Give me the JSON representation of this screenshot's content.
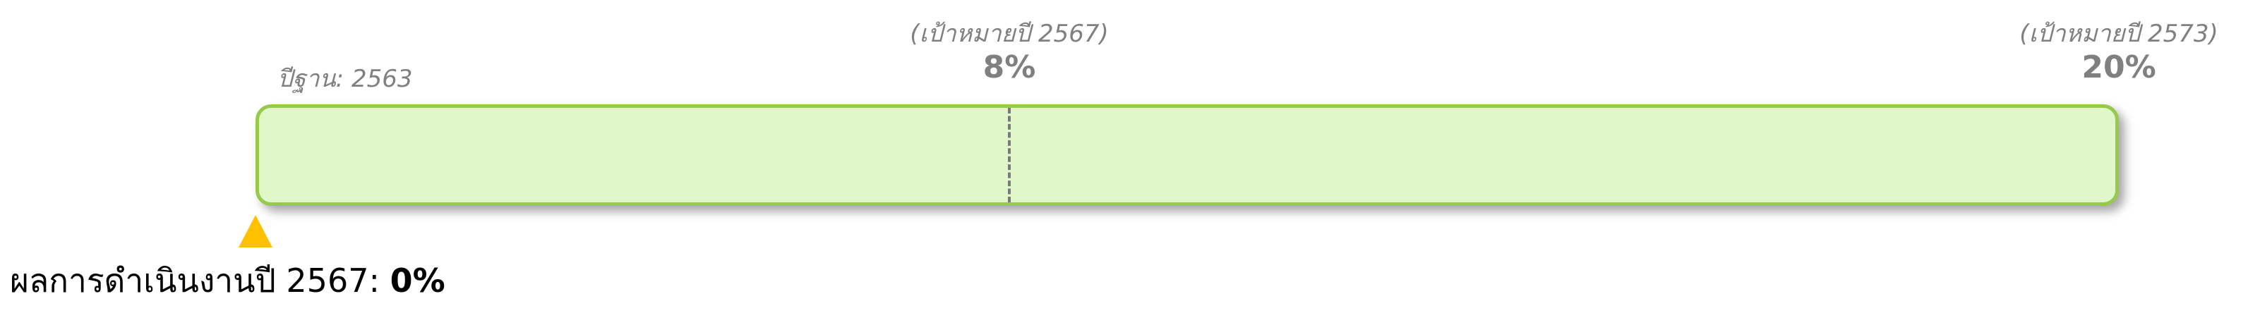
{
  "chart_data": {
    "type": "progress",
    "min": 0,
    "max": 20,
    "unit": "%",
    "baseline_label": "ปีฐาน: 2563",
    "milestones": [
      {
        "label": "(เป้าหมายปี 2567)",
        "value": 8,
        "value_text": "8%"
      },
      {
        "label": "(เป้าหมายปี 2573)",
        "value": 20,
        "value_text": "20%"
      }
    ],
    "actual": {
      "label": "ผลการดำเนินงานปี 2567: ",
      "value": 0,
      "value_text": "0%"
    },
    "colors": {
      "bar_fill": "#e0f7c9",
      "bar_border": "#97c94a",
      "marker": "#ffc000",
      "label": "#808080",
      "target_line": "#7a7a7a"
    }
  }
}
